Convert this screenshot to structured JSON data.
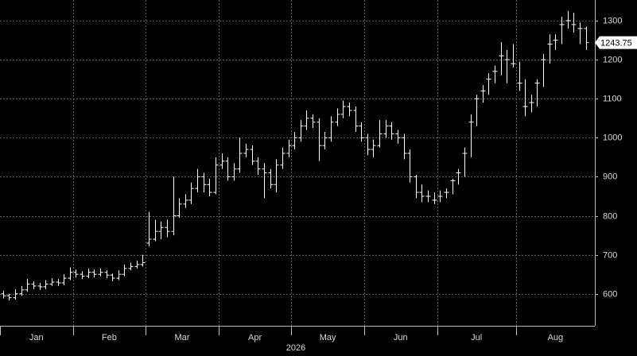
{
  "chart_data": {
    "type": "ohlc",
    "xlabel": "2026",
    "color": "#ffffff",
    "months": [
      "Jan",
      "Feb",
      "Mar",
      "Apr",
      "May",
      "Jun",
      "Jul",
      "Aug"
    ],
    "xlim": [
      0,
      98
    ],
    "xticks": [
      0,
      12,
      24,
      36,
      48,
      60,
      72,
      85
    ],
    "ylim": [
      518,
      1353
    ],
    "yticks": [
      600,
      700,
      800,
      900,
      1000,
      1100,
      1200,
      1300
    ],
    "grid": true,
    "open": [
      600,
      595,
      590,
      600,
      610,
      625,
      620,
      618,
      625,
      630,
      628,
      640,
      655,
      650,
      645,
      655,
      650,
      655,
      648,
      640,
      650,
      665,
      670,
      675,
      730,
      740,
      760,
      770,
      760,
      800,
      830,
      840,
      870,
      900,
      880,
      860,
      930,
      940,
      900,
      920,
      960,
      970,
      940,
      920,
      910,
      880,
      930,
      960,
      980,
      1000,
      1030,
      1050,
      1040,
      980,
      1000,
      1040,
      1060,
      1080,
      1070,
      1030,
      1000,
      970,
      980,
      1010,
      1030,
      1010,
      1000,
      960,
      900,
      860,
      850,
      840,
      850,
      860,
      890,
      910,
      960,
      1040,
      1100,
      1120,
      1150,
      1170,
      1210,
      1200,
      1190,
      1140,
      1080,
      1090,
      1140,
      1200,
      1240,
      1250,
      1290,
      1300,
      1290,
      1280,
      1280
    ],
    "high": [
      608,
      600,
      612,
      620,
      638,
      632,
      628,
      635,
      640,
      638,
      650,
      668,
      662,
      658,
      665,
      662,
      665,
      660,
      652,
      660,
      675,
      680,
      685,
      700,
      810,
      790,
      785,
      790,
      900,
      845,
      855,
      885,
      920,
      910,
      895,
      950,
      960,
      950,
      935,
      1000,
      985,
      980,
      950,
      935,
      920,
      945,
      975,
      995,
      1015,
      1045,
      1070,
      1060,
      1050,
      1015,
      1055,
      1075,
      1095,
      1090,
      1080,
      1040,
      1010,
      995,
      1045,
      1045,
      1040,
      1020,
      1010,
      970,
      905,
      880,
      865,
      860,
      865,
      870,
      895,
      920,
      975,
      1060,
      1110,
      1135,
      1165,
      1185,
      1245,
      1225,
      1240,
      1195,
      1150,
      1110,
      1150,
      1215,
      1265,
      1265,
      1310,
      1325,
      1320,
      1295,
      1285
    ],
    "low": [
      588,
      583,
      585,
      595,
      605,
      612,
      610,
      612,
      620,
      620,
      622,
      635,
      642,
      638,
      640,
      642,
      645,
      640,
      632,
      635,
      645,
      660,
      665,
      670,
      722,
      735,
      740,
      745,
      750,
      795,
      820,
      830,
      860,
      860,
      850,
      855,
      920,
      890,
      890,
      910,
      950,
      930,
      905,
      845,
      870,
      860,
      920,
      950,
      970,
      990,
      1020,
      1025,
      940,
      970,
      990,
      1030,
      1050,
      1055,
      1015,
      990,
      955,
      950,
      975,
      1000,
      995,
      985,
      945,
      885,
      845,
      835,
      835,
      830,
      835,
      845,
      855,
      880,
      900,
      950,
      1030,
      1090,
      1110,
      1140,
      1160,
      1140,
      1180,
      1120,
      1055,
      1065,
      1080,
      1130,
      1190,
      1225,
      1240,
      1280,
      1270,
      1240,
      1225
    ],
    "close": [
      595,
      590,
      600,
      610,
      625,
      620,
      618,
      625,
      630,
      628,
      640,
      655,
      650,
      645,
      655,
      650,
      655,
      648,
      640,
      650,
      665,
      670,
      675,
      680,
      740,
      760,
      770,
      760,
      800,
      830,
      840,
      870,
      900,
      880,
      860,
      930,
      940,
      900,
      920,
      960,
      970,
      940,
      920,
      910,
      880,
      930,
      960,
      980,
      1000,
      1030,
      1050,
      1040,
      980,
      1000,
      1040,
      1060,
      1080,
      1070,
      1030,
      1000,
      970,
      980,
      1010,
      1030,
      1010,
      1000,
      960,
      900,
      860,
      850,
      850,
      840,
      850,
      860,
      890,
      910,
      960,
      1040,
      1100,
      1120,
      1150,
      1170,
      1210,
      1200,
      1190,
      1140,
      1080,
      1090,
      1140,
      1200,
      1240,
      1250,
      1290,
      1300,
      1290,
      1280,
      1243.75
    ]
  }
}
